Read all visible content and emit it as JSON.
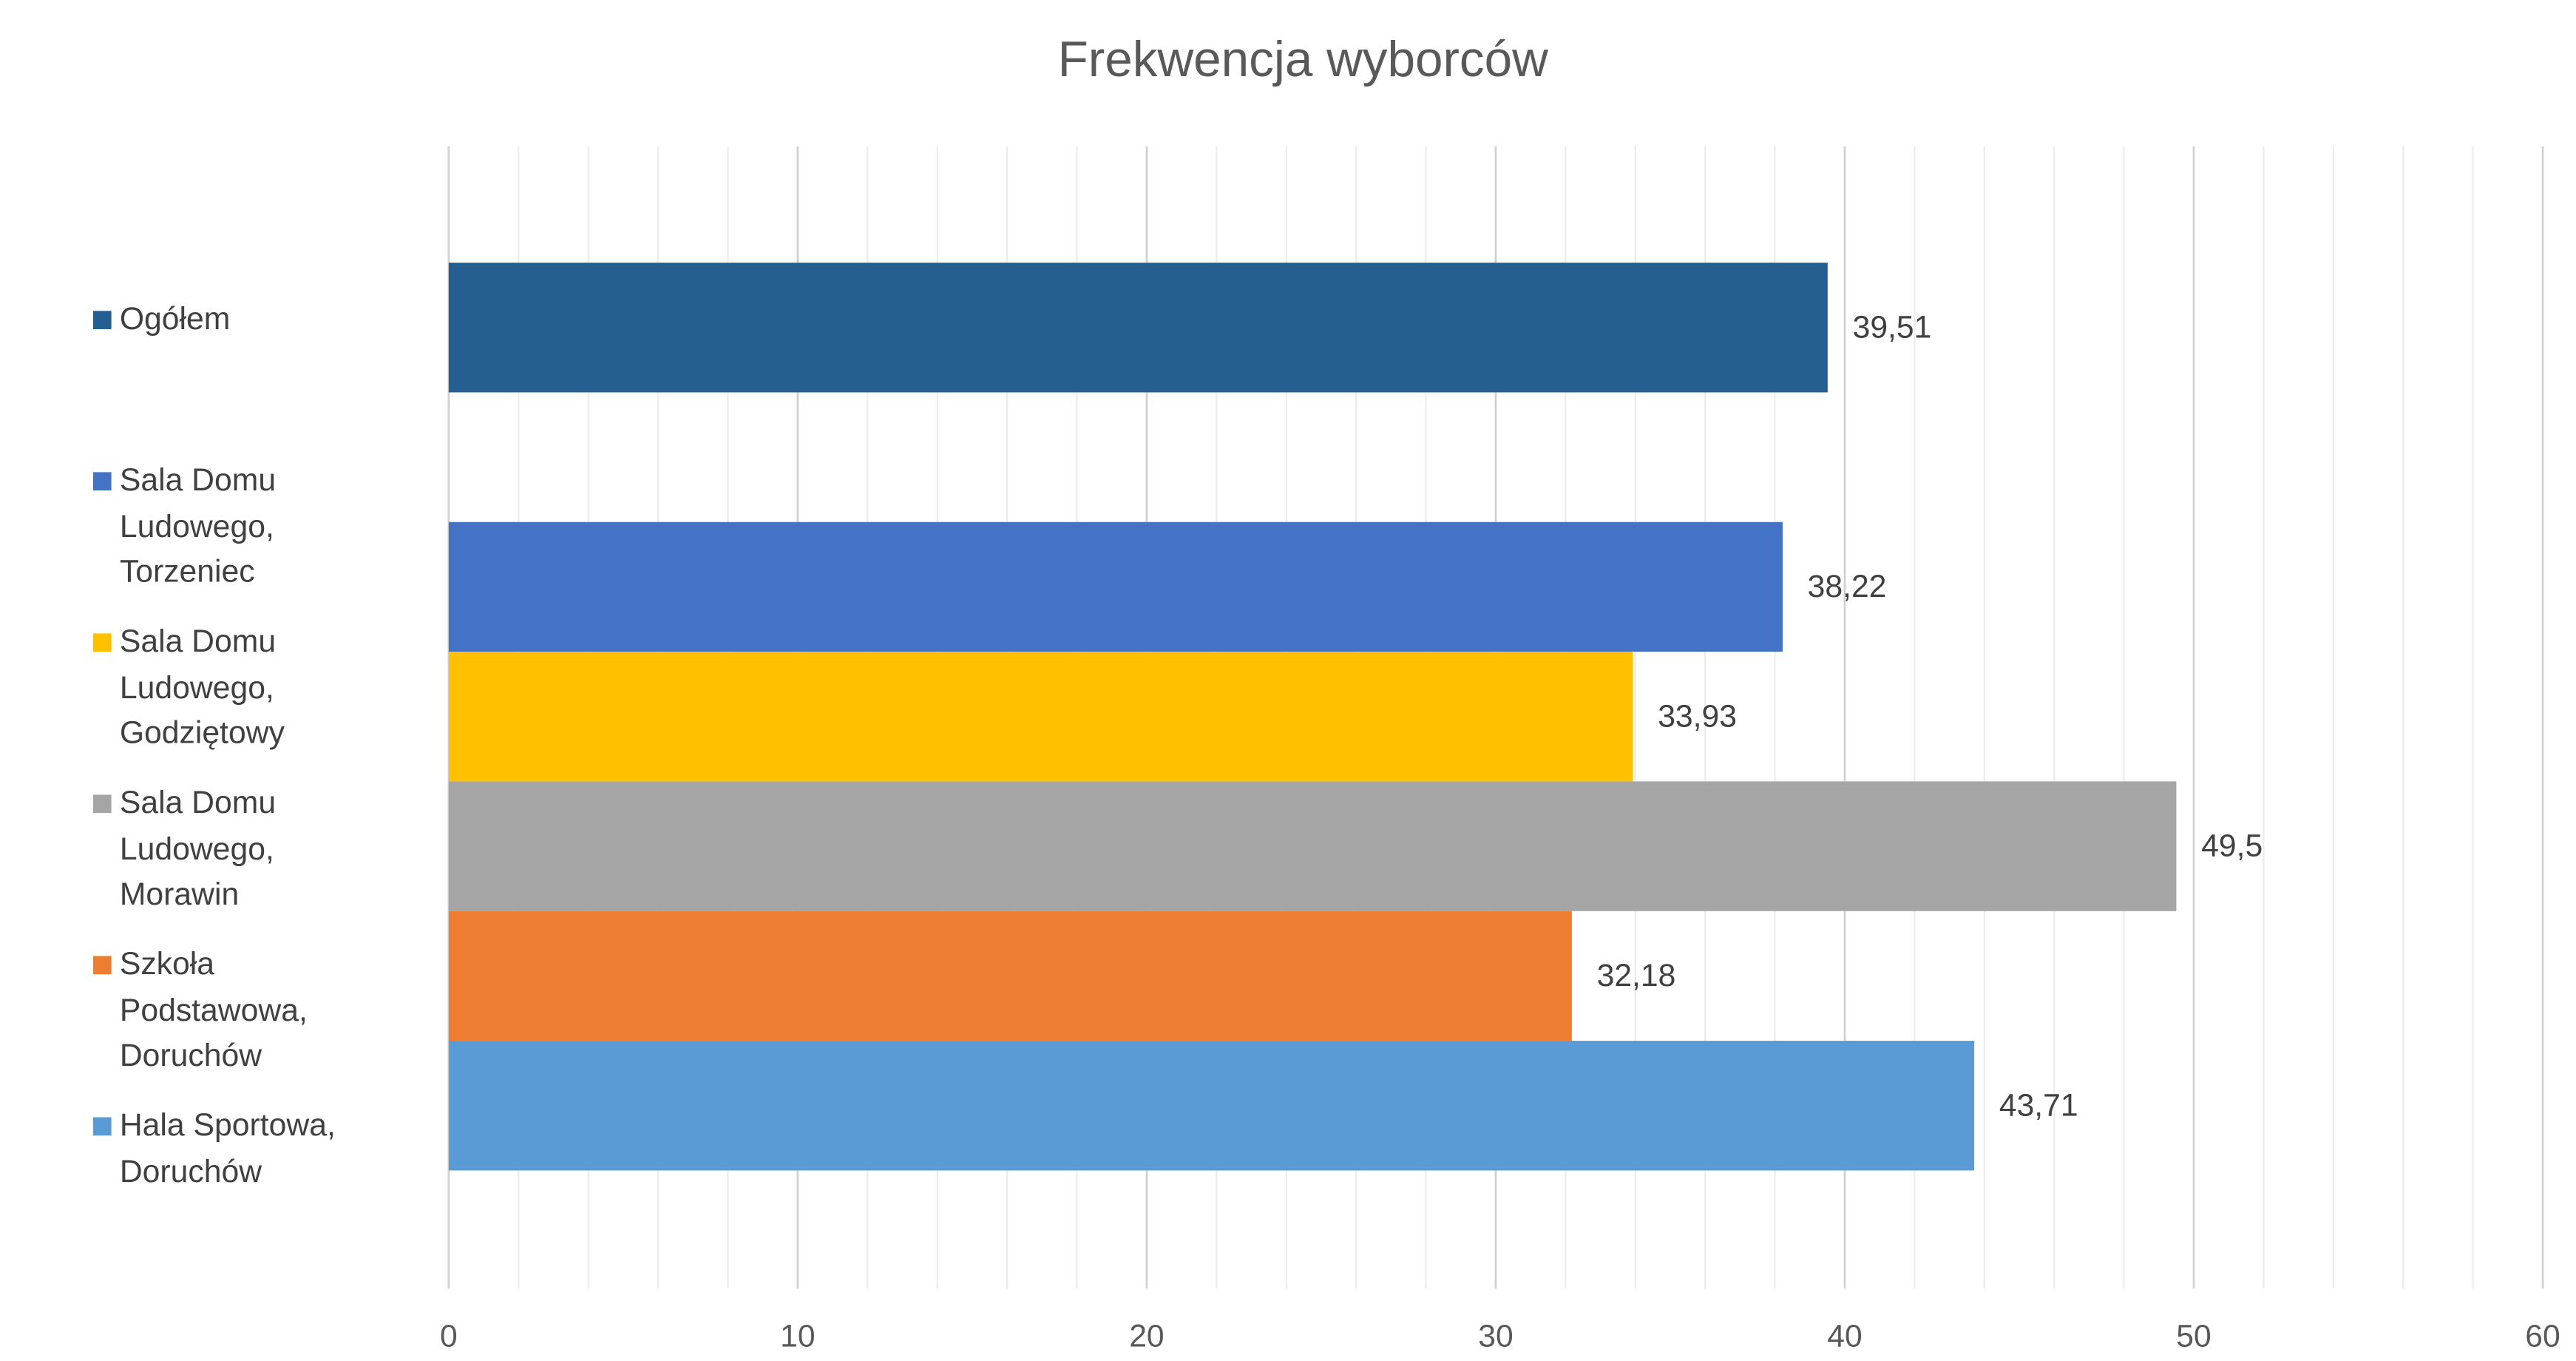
{
  "chart_data": {
    "type": "bar",
    "orientation": "horizontal",
    "title": "Frekwencja wyborców",
    "categories": [
      null,
      null
    ],
    "series": [
      {
        "name": "Ogółem",
        "color": "#255e91",
        "values": [
          39.51,
          null
        ],
        "value_labels": [
          "39,51",
          null
        ]
      },
      {
        "name": "Sala Domu Ludowego, Torzeniec",
        "color": "#4472c4",
        "values": [
          null,
          38.22
        ],
        "value_labels": [
          null,
          "38,22"
        ]
      },
      {
        "name": "Sala Domu Ludowego, Godziętowy",
        "color": "#ffc000",
        "values": [
          null,
          33.93
        ],
        "value_labels": [
          null,
          "33,93"
        ]
      },
      {
        "name": "Sala Domu Ludowego, Morawin",
        "color": "#a5a5a5",
        "values": [
          null,
          49.5
        ],
        "value_labels": [
          null,
          "49,5"
        ]
      },
      {
        "name": "Szkoła Podstawowa, Doruchów",
        "color": "#ed7d31",
        "values": [
          null,
          32.18
        ],
        "value_labels": [
          null,
          "32,18"
        ]
      },
      {
        "name": "Hala Sportowa, Doruchów",
        "color": "#5b9bd5",
        "values": [
          null,
          43.71
        ],
        "value_labels": [
          null,
          "43,71"
        ]
      }
    ],
    "xlim": [
      0,
      60
    ],
    "xticks": [
      0,
      10,
      20,
      30,
      40,
      50,
      60
    ],
    "grid": true,
    "minor_grid": true,
    "legend": "left"
  }
}
